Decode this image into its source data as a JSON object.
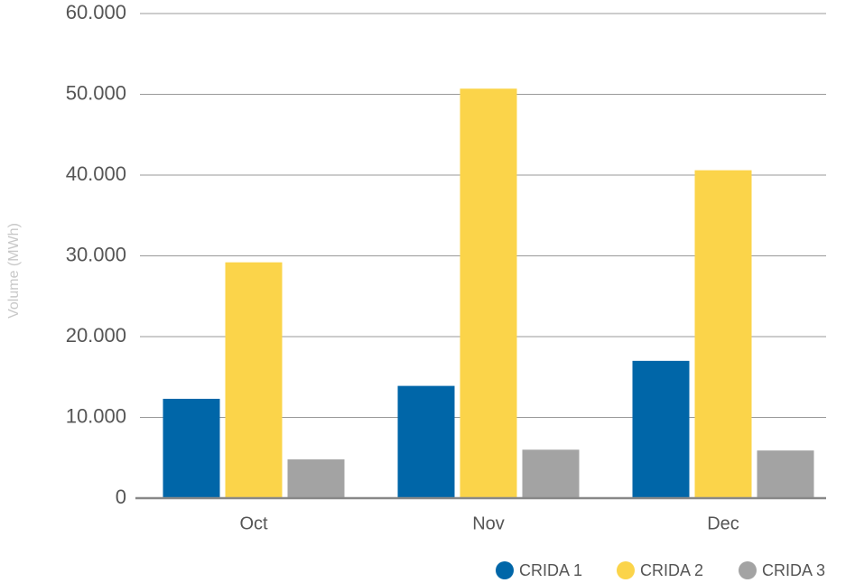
{
  "chart_data": {
    "type": "bar",
    "y_label": "Volume (MWh)",
    "categories": [
      "Oct",
      "Nov",
      "Dec"
    ],
    "series": [
      {
        "name": "CRIDA 1",
        "color": "#0066a8",
        "values": [
          12300,
          13900,
          17000
        ]
      },
      {
        "name": "CRIDA 2",
        "color": "#fbd44a",
        "values": [
          29200,
          50700,
          40600
        ]
      },
      {
        "name": "CRIDA 3",
        "color": "#a3a3a3",
        "values": [
          4800,
          6000,
          5900
        ]
      }
    ],
    "ylim": [
      0,
      60000
    ],
    "yticks": [
      0,
      {
        "value": 10000,
        "label": "10.000"
      },
      {
        "value": 20000,
        "label": "20.000"
      },
      {
        "value": 30000,
        "label": "30.000"
      },
      {
        "value": 40000,
        "label": "40.000"
      },
      {
        "value": 50000,
        "label": "50.000"
      },
      {
        "value": 60000,
        "label": "60.000"
      }
    ],
    "grid": true,
    "legend": "bottom-right"
  }
}
